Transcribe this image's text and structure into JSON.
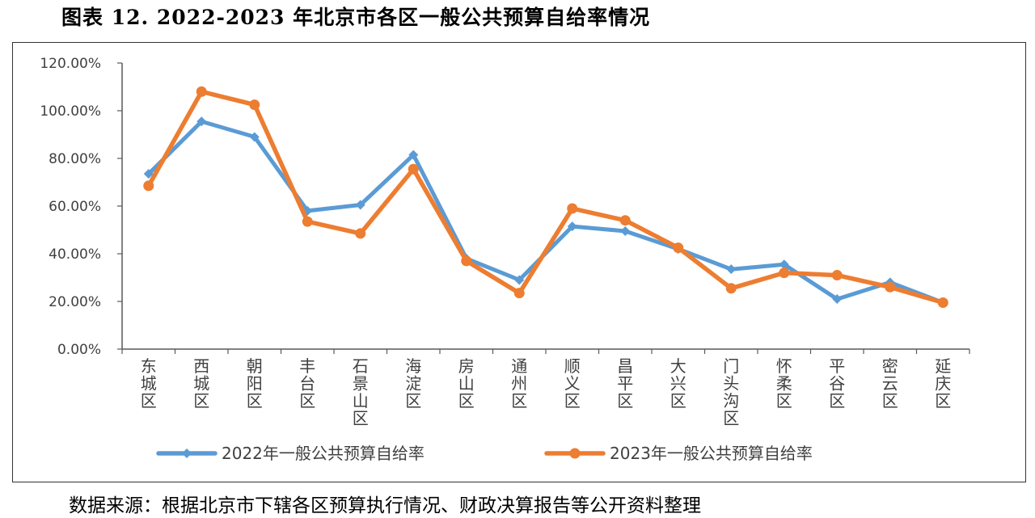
{
  "figure_title": "图表 12. 2022-2023 年北京市各区一般公共预算自给率情况",
  "source_note": "数据来源：根据北京市下辖各区预算执行情况、财政决算报告等公开资料整理",
  "colors": {
    "series_2022": "#5B9BD5",
    "series_2023": "#ED7D31",
    "axis": "#595959"
  },
  "chart_data": {
    "type": "line",
    "title": "",
    "xlabel": "",
    "ylabel": "",
    "ylim": [
      0,
      120
    ],
    "y_ticks": [
      "0.00%",
      "20.00%",
      "40.00%",
      "60.00%",
      "80.00%",
      "100.00%",
      "120.00%"
    ],
    "grid": false,
    "legend_position": "bottom",
    "categories": [
      "东城区",
      "西城区",
      "朝阳区",
      "丰台区",
      "石景山区",
      "海淀区",
      "房山区",
      "通州区",
      "顺义区",
      "昌平区",
      "大兴区",
      "门头沟区",
      "怀柔区",
      "平谷区",
      "密云区",
      "延庆区"
    ],
    "series": [
      {
        "name": "2022年一般公共预算自给率",
        "marker": "diamond",
        "values": [
          73.5,
          95.5,
          89,
          58,
          60.5,
          81.5,
          38,
          29,
          51.5,
          49.5,
          42,
          33.5,
          35.5,
          21,
          28,
          19.5
        ]
      },
      {
        "name": "2023年一般公共预算自给率",
        "marker": "circle",
        "values": [
          68.5,
          108,
          102.5,
          53.5,
          48.5,
          75.5,
          37,
          23.5,
          59,
          54,
          42.5,
          25.5,
          32,
          31,
          26,
          19.5
        ]
      }
    ]
  }
}
